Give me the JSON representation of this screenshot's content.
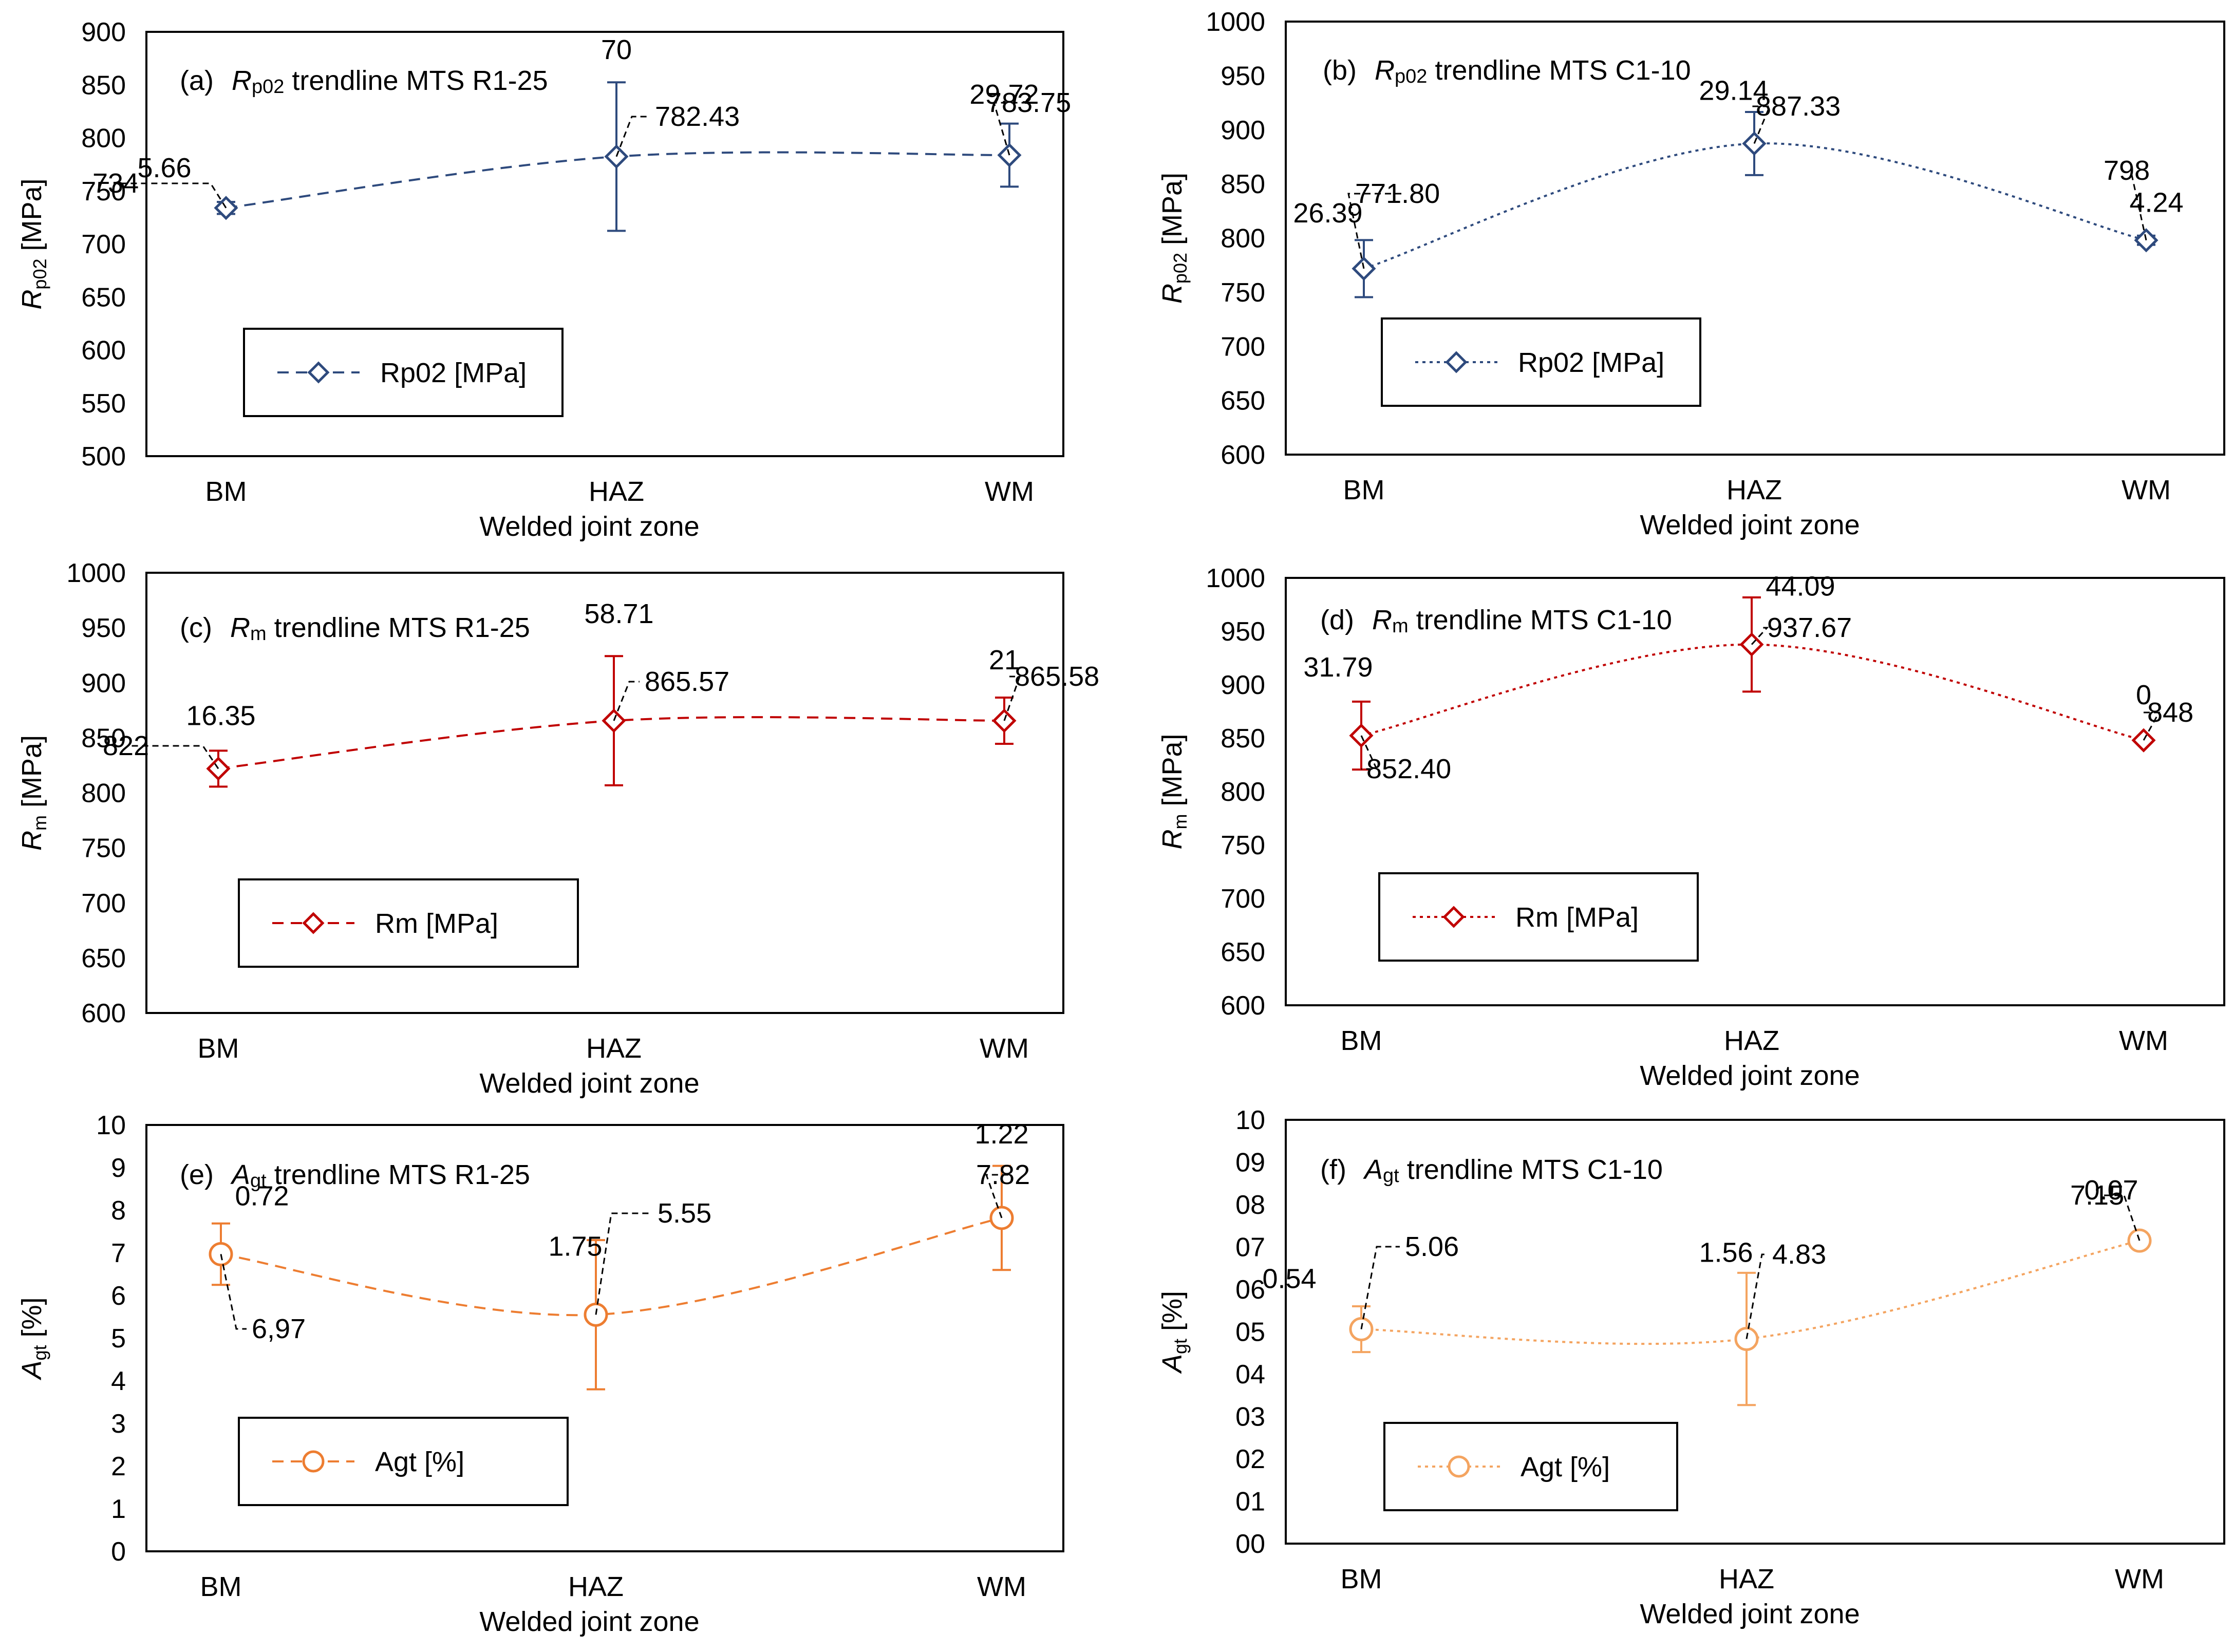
{
  "chart_data": [
    {
      "type": "line",
      "panel_label": "(a)",
      "title_symbol": "R",
      "title_subscript": "p02",
      "title_rest": " trendline MTS R1-25",
      "ylabel_symbol": "R",
      "ylabel_subscript": "p02",
      "ylabel_unit": " [MPa]",
      "xlabel": "Welded joint zone",
      "categories": [
        "BM",
        "HAZ",
        "WM"
      ],
      "ylim": [
        500,
        900
      ],
      "ytick_step": 50,
      "ytick_labels": [
        "500",
        "550",
        "600",
        "650",
        "700",
        "750",
        "800",
        "850",
        "900"
      ],
      "color": "#2E4A7D",
      "line_style": "dashed",
      "marker": "diamond",
      "series": [
        {
          "name": "Rp02 [MPa]",
          "values": [
            734,
            782.43,
            783.75
          ],
          "errors": [
            5.66,
            70,
            29.72
          ]
        }
      ],
      "value_labels": [
        "734",
        "782.43",
        "783.75"
      ],
      "error_labels": [
        "5.66",
        "70",
        "29.72"
      ]
    },
    {
      "type": "line",
      "panel_label": "(b)",
      "title_symbol": "R",
      "title_subscript": "p02",
      "title_rest": " trendline MTS C1-10",
      "ylabel_symbol": "R",
      "ylabel_subscript": "p02",
      "ylabel_unit": " [MPa]",
      "xlabel": "Welded joint zone",
      "categories": [
        "BM",
        "HAZ",
        "WM"
      ],
      "ylim": [
        600,
        1000
      ],
      "ytick_step": 50,
      "ytick_labels": [
        "600",
        "650",
        "700",
        "750",
        "800",
        "850",
        "900",
        "950",
        "1000"
      ],
      "color": "#2E4A7D",
      "line_style": "dotted",
      "marker": "diamond",
      "series": [
        {
          "name": "Rp02 [MPa]",
          "values": [
            771.8,
            887.33,
            798
          ],
          "errors": [
            26.39,
            29.14,
            4.24
          ]
        }
      ],
      "value_labels": [
        "771.80",
        "887.33",
        "798"
      ],
      "error_labels": [
        "26.39",
        "29.14",
        "4.24"
      ]
    },
    {
      "type": "line",
      "panel_label": "(c)",
      "title_symbol": "R",
      "title_subscript": "m",
      "title_rest": " trendline MTS R1-25",
      "ylabel_symbol": "R",
      "ylabel_subscript": "m",
      "ylabel_unit": " [MPa]",
      "xlabel": "Welded joint zone",
      "categories": [
        "BM",
        "HAZ",
        "WM"
      ],
      "ylim": [
        600,
        1000
      ],
      "ytick_step": 50,
      "ytick_labels": [
        "600",
        "650",
        "700",
        "750",
        "800",
        "850",
        "900",
        "950",
        "1000"
      ],
      "color": "#C00000",
      "line_style": "dashed",
      "marker": "diamond",
      "series": [
        {
          "name": "Rm [MPa]",
          "values": [
            822,
            865.57,
            865.58
          ],
          "errors": [
            16.35,
            58.71,
            21
          ]
        }
      ],
      "value_labels": [
        "822",
        "865.57",
        "865.58"
      ],
      "error_labels": [
        "16.35",
        "58.71",
        "21"
      ]
    },
    {
      "type": "line",
      "panel_label": "(d)",
      "title_symbol": "R",
      "title_subscript": "m",
      "title_rest": " trendline MTS C1-10",
      "ylabel_symbol": "R",
      "ylabel_subscript": "m",
      "ylabel_unit": " [MPa]",
      "xlabel": "Welded joint zone",
      "categories": [
        "BM",
        "HAZ",
        "WM"
      ],
      "ylim": [
        600,
        1000
      ],
      "ytick_step": 50,
      "ytick_labels": [
        "600",
        "650",
        "700",
        "750",
        "800",
        "850",
        "900",
        "950",
        "1000"
      ],
      "color": "#C00000",
      "line_style": "dotted",
      "marker": "diamond",
      "series": [
        {
          "name": "Rm [MPa]",
          "values": [
            852.4,
            937.67,
            848
          ],
          "errors": [
            31.79,
            44.09,
            0
          ]
        }
      ],
      "value_labels": [
        "852.40",
        "937.67",
        "848"
      ],
      "error_labels": [
        "31.79",
        "44.09",
        "0"
      ]
    },
    {
      "type": "line",
      "panel_label": "(e)",
      "title_symbol": "A",
      "title_subscript": "gt",
      "title_rest": " trendline MTS R1-25",
      "ylabel_symbol": "A",
      "ylabel_subscript": "gt",
      "ylabel_unit": " [%]",
      "xlabel": "Welded joint zone",
      "categories": [
        "BM",
        "HAZ",
        "WM"
      ],
      "ylim": [
        0,
        10
      ],
      "ytick_step": 1,
      "ytick_labels": [
        "0",
        "1",
        "2",
        "3",
        "4",
        "5",
        "6",
        "7",
        "8",
        "9",
        "10"
      ],
      "color": "#ED7D31",
      "line_style": "dashed",
      "marker": "circle",
      "series": [
        {
          "name": "Agt [%]",
          "values": [
            6.97,
            5.55,
            7.82
          ],
          "errors": [
            0.72,
            1.75,
            1.22
          ]
        }
      ],
      "value_labels": [
        "6,97",
        "5.55",
        "7.82"
      ],
      "error_labels": [
        "0.72",
        "1.75",
        "1.22"
      ]
    },
    {
      "type": "line",
      "panel_label": "(f)",
      "title_symbol": "A",
      "title_subscript": "gt",
      "title_rest": " trendline MTS C1-10",
      "ylabel_symbol": "A",
      "ylabel_subscript": "gt",
      "ylabel_unit": " [%]",
      "xlabel": "Welded joint zone",
      "categories": [
        "BM",
        "HAZ",
        "WM"
      ],
      "ylim": [
        0,
        10
      ],
      "ytick_step": 1,
      "ytick_labels": [
        "00",
        "01",
        "02",
        "03",
        "04",
        "05",
        "06",
        "07",
        "08",
        "09",
        "10"
      ],
      "color": "#F4A460",
      "line_style": "dotted",
      "marker": "circle",
      "series": [
        {
          "name": "Agt [%]",
          "values": [
            5.06,
            4.83,
            7.15
          ],
          "errors": [
            0.54,
            1.56,
            0.07
          ]
        }
      ],
      "value_labels": [
        "5.06",
        "4.83",
        "7.15"
      ],
      "error_labels": [
        "0.54",
        "1.56",
        "0.07"
      ]
    }
  ]
}
